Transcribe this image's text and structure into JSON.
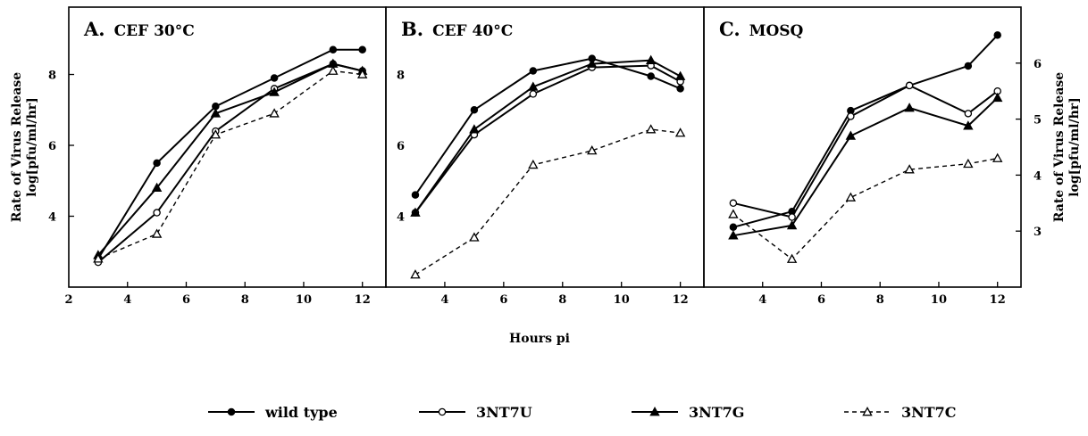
{
  "chart_data": {
    "type": "line",
    "xlabel": "Hours pi",
    "ylabel_left": [
      "Rate of Virus Release",
      "log[pfu/ml/hr]"
    ],
    "ylabel_right": [
      "Rate of Virus Release",
      "log[pfu/ml/hr]"
    ],
    "x_ticks": {
      "A": [
        "2",
        "4",
        "6",
        "8",
        "10",
        "12"
      ],
      "B": [
        "4",
        "6",
        "8",
        "10",
        "12"
      ],
      "C": [
        "4",
        "6",
        "8",
        "10",
        "12"
      ]
    },
    "legend": [
      {
        "label": "wild type",
        "marker": "filled-circle",
        "dash": "solid"
      },
      {
        "label": "3NT7U",
        "marker": "open-circle",
        "dash": "solid"
      },
      {
        "label": "3NT7G",
        "marker": "filled-triangle",
        "dash": "solid"
      },
      {
        "label": "3NT7C",
        "marker": "open-triangle",
        "dash": "dashed"
      }
    ],
    "panels": [
      {
        "letter": "A.",
        "title": "CEF 30°C",
        "x": [
          3,
          5,
          7,
          9,
          11,
          12
        ],
        "xlim": [
          2,
          12.8
        ],
        "ylim": [
          2.0,
          9.9
        ],
        "y_ticks": [
          "4",
          "6",
          "8"
        ],
        "y_tick_values": [
          4,
          6,
          8
        ],
        "y_axis_side": "left",
        "series": [
          {
            "name": "wild type",
            "values": [
              2.8,
              5.5,
              7.1,
              7.9,
              8.7,
              8.7
            ]
          },
          {
            "name": "3NT7U",
            "values": [
              2.7,
              4.1,
              6.4,
              7.6,
              8.3,
              8.1
            ]
          },
          {
            "name": "3NT7G",
            "values": [
              2.9,
              4.8,
              6.9,
              7.5,
              8.3,
              8.1
            ]
          },
          {
            "name": "3NT7C",
            "values": [
              2.8,
              3.5,
              6.3,
              6.9,
              8.1,
              8.0
            ]
          }
        ]
      },
      {
        "letter": "B.",
        "title": "CEF 40°C",
        "x": [
          3,
          5,
          7,
          9,
          11,
          12
        ],
        "xlim": [
          2,
          12.8
        ],
        "ylim": [
          2.0,
          9.9
        ],
        "y_ticks": [
          "4",
          "6",
          "8"
        ],
        "y_tick_values": [
          4,
          6,
          8
        ],
        "y_axis_side": "none",
        "series": [
          {
            "name": "wild type",
            "values": [
              4.6,
              7.0,
              8.1,
              8.45,
              7.95,
              7.6
            ]
          },
          {
            "name": "3NT7U",
            "values": [
              4.1,
              6.3,
              7.45,
              8.2,
              8.25,
              7.8
            ]
          },
          {
            "name": "3NT7G",
            "values": [
              4.1,
              6.45,
              7.65,
              8.3,
              8.4,
              7.95
            ]
          },
          {
            "name": "3NT7C",
            "values": [
              2.35,
              3.4,
              5.45,
              5.85,
              6.45,
              6.35
            ]
          }
        ]
      },
      {
        "letter": "C.",
        "title": "MOSQ",
        "x": [
          3,
          5,
          7,
          9,
          11,
          12
        ],
        "xlim": [
          2,
          12.8
        ],
        "ylim": [
          2.0,
          7.0
        ],
        "y_ticks": [
          "3",
          "4",
          "5",
          "6"
        ],
        "y_tick_values": [
          3,
          4,
          5,
          6
        ],
        "y_axis_side": "right",
        "series": [
          {
            "name": "wild type",
            "values": [
              3.07,
              3.35,
              5.15,
              5.6,
              5.95,
              6.5
            ]
          },
          {
            "name": "3NT7U",
            "values": [
              3.5,
              3.25,
              5.05,
              5.6,
              5.1,
              5.5
            ]
          },
          {
            "name": "3NT7G",
            "values": [
              2.92,
              3.1,
              4.7,
              5.2,
              4.88,
              5.38
            ]
          },
          {
            "name": "3NT7C",
            "values": [
              3.3,
              2.5,
              3.6,
              4.1,
              4.2,
              4.3
            ]
          }
        ]
      }
    ]
  }
}
